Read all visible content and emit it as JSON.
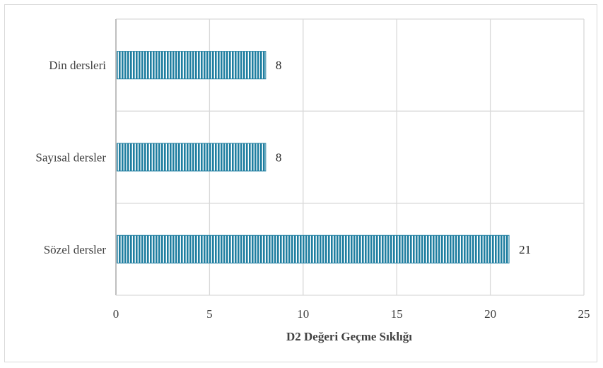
{
  "chart_data": {
    "type": "bar",
    "orientation": "horizontal",
    "categories": [
      "Din dersleri",
      "Sayısal dersler",
      "Sözel dersler"
    ],
    "values": [
      8,
      8,
      21
    ],
    "xlabel": "D2 Değeri Geçme Sıklığı",
    "ylabel": "",
    "xlim": [
      0,
      25
    ],
    "xticks": [
      0,
      5,
      10,
      15,
      20,
      25
    ],
    "grid": true,
    "data_labels": true,
    "colors": {
      "bar": "#1f7ea0",
      "stripe": "#ffffff",
      "grid": "#d9d9d9"
    }
  }
}
